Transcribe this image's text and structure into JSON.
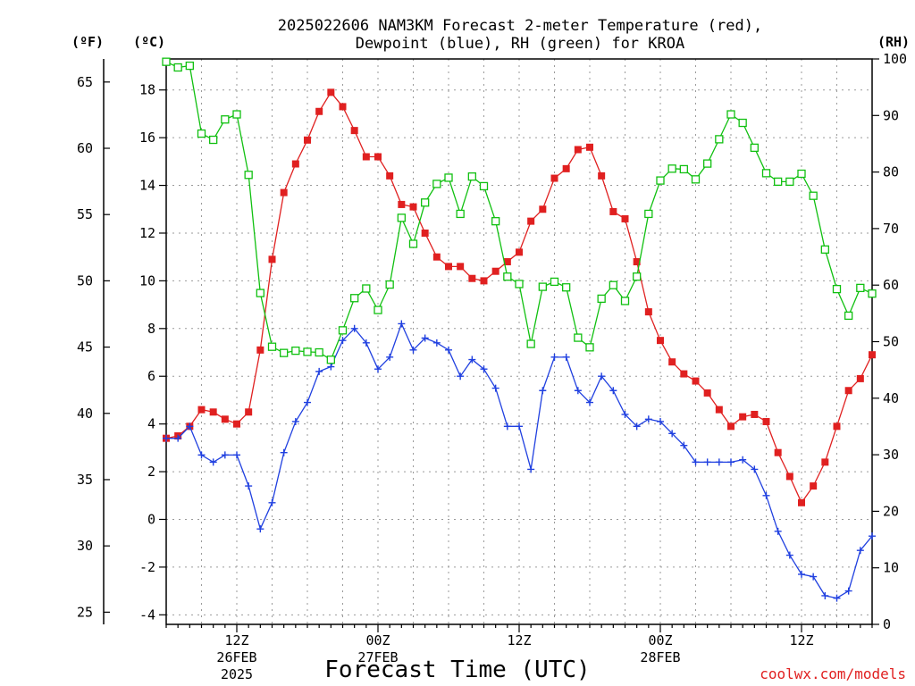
{
  "chart_data": {
    "type": "line",
    "title_line1": "2025022606 NAM3KM Forecast 2-meter Temperature (red),",
    "title_line2": "Dewpoint (blue), RH (green) for KROA",
    "xlabel": "Forecast Time (UTC)",
    "credit": "coolwx.com/models",
    "units": {
      "fahrenheit": "(ºF)",
      "celsius": "(ºC)",
      "rh": "(RH)"
    },
    "x_start_hour": 6,
    "x_end_hour": 66,
    "x_ticks": [
      {
        "hour": 12,
        "label1": "12Z",
        "label2": "26FEB",
        "label3": "2025"
      },
      {
        "hour": 24,
        "label1": "00Z",
        "label2": "27FEB",
        "label3": ""
      },
      {
        "hour": 36,
        "label1": "12Z",
        "label2": "",
        "label3": ""
      },
      {
        "hour": 48,
        "label1": "00Z",
        "label2": "28FEB",
        "label3": ""
      },
      {
        "hour": 60,
        "label1": "12Z",
        "label2": "",
        "label3": ""
      }
    ],
    "celsius_range": [
      -4.4,
      19.3
    ],
    "celsius_ticks": [
      18,
      16,
      14,
      12,
      10,
      8,
      6,
      4,
      2,
      0,
      -2,
      -4
    ],
    "fahrenheit_ticks": [
      65,
      60,
      55,
      50,
      45,
      40,
      35,
      30,
      25
    ],
    "rh_range": [
      0,
      100
    ],
    "rh_ticks": [
      100,
      90,
      80,
      70,
      60,
      50,
      40,
      30,
      20,
      10,
      0
    ],
    "grid": true,
    "colors": {
      "temperature": "#e02020",
      "dewpoint": "#2040e0",
      "rh": "#10c010"
    },
    "series": [
      {
        "name": "2-meter Temperature (red)",
        "axis": "celsius",
        "marker": "filled-square",
        "x": [
          6,
          7,
          8,
          9,
          10,
          11,
          12,
          13,
          14,
          15,
          16,
          17,
          18,
          19,
          20,
          21,
          22,
          23,
          24,
          25,
          26,
          27,
          28,
          29,
          30,
          31,
          32,
          33,
          34,
          35,
          36,
          37,
          38,
          39,
          40,
          41,
          42,
          43,
          44,
          45,
          46,
          47,
          48,
          49,
          50,
          51,
          52,
          53,
          54,
          55,
          56,
          57,
          58,
          59,
          60,
          61,
          62,
          63,
          64,
          65,
          66
        ],
        "values": [
          3.4,
          3.5,
          3.9,
          4.6,
          4.5,
          4.2,
          4.0,
          4.5,
          7.1,
          10.9,
          13.7,
          14.9,
          15.9,
          17.1,
          17.9,
          17.3,
          16.3,
          15.2,
          15.2,
          14.4,
          13.2,
          13.1,
          12.0,
          11.0,
          10.6,
          10.6,
          10.1,
          10.0,
          10.4,
          10.8,
          11.2,
          12.5,
          13.0,
          14.3,
          14.7,
          15.5,
          15.6,
          14.4,
          12.9,
          12.6,
          10.8,
          8.7,
          7.5,
          6.6,
          6.1,
          5.8,
          5.3,
          4.6,
          3.9,
          4.3,
          4.4,
          4.1,
          2.8,
          1.8,
          0.7,
          1.4,
          2.4,
          3.9,
          5.4,
          5.9,
          6.9
        ]
      },
      {
        "name": "Dewpoint (blue)",
        "axis": "celsius",
        "marker": "plus",
        "x": [
          6,
          7,
          8,
          9,
          10,
          11,
          12,
          13,
          14,
          15,
          16,
          17,
          18,
          19,
          20,
          21,
          22,
          23,
          24,
          25,
          26,
          27,
          28,
          29,
          30,
          31,
          32,
          33,
          34,
          35,
          36,
          37,
          38,
          39,
          40,
          41,
          42,
          43,
          44,
          45,
          46,
          47,
          48,
          49,
          50,
          51,
          52,
          53,
          54,
          55,
          56,
          57,
          58,
          59,
          60,
          61,
          62,
          63,
          64,
          65,
          66
        ],
        "values": [
          3.4,
          3.4,
          3.9,
          2.7,
          2.4,
          2.7,
          2.7,
          1.4,
          -0.4,
          0.7,
          2.8,
          4.1,
          4.9,
          6.2,
          6.4,
          7.5,
          8.0,
          7.4,
          6.3,
          6.8,
          8.2,
          7.1,
          7.6,
          7.4,
          7.1,
          6.0,
          6.7,
          6.3,
          5.5,
          3.9,
          3.9,
          2.1,
          5.4,
          6.8,
          6.8,
          5.4,
          4.9,
          6.0,
          5.4,
          4.4,
          3.9,
          4.2,
          4.1,
          3.6,
          3.1,
          2.4,
          2.4,
          2.4,
          2.4,
          2.5,
          2.1,
          1.0,
          -0.5,
          -1.5,
          -2.3,
          -2.4,
          -3.2,
          -3.3,
          -3.0,
          -1.3,
          -0.7
        ]
      },
      {
        "name": "RH (green)",
        "axis": "rh",
        "marker": "open-square",
        "x": [
          6,
          7,
          8,
          9,
          10,
          11,
          12,
          13,
          14,
          15,
          16,
          17,
          18,
          19,
          20,
          21,
          22,
          23,
          24,
          25,
          26,
          27,
          28,
          29,
          30,
          31,
          32,
          33,
          34,
          35,
          36,
          37,
          38,
          39,
          40,
          41,
          42,
          43,
          44,
          45,
          46,
          47,
          48,
          49,
          50,
          51,
          52,
          53,
          54,
          55,
          56,
          57,
          58,
          59,
          60,
          61,
          62,
          63,
          64,
          65,
          66
        ],
        "values": [
          99.5,
          98.5,
          98.8,
          86.8,
          85.7,
          89.3,
          90.2,
          79.5,
          58.6,
          49.1,
          48.0,
          48.4,
          48.2,
          48.1,
          46.8,
          52.0,
          57.7,
          59.4,
          55.6,
          60.1,
          71.9,
          67.3,
          74.6,
          77.9,
          79.0,
          72.6,
          79.2,
          77.5,
          71.3,
          61.5,
          60.2,
          49.6,
          59.7,
          60.6,
          59.6,
          50.7,
          49.0,
          57.6,
          60.0,
          57.2,
          61.5,
          72.6,
          78.5,
          80.6,
          80.5,
          78.7,
          81.5,
          85.8,
          90.2,
          88.7,
          84.3,
          79.8,
          78.3,
          78.3,
          79.7,
          75.8,
          66.3,
          59.3,
          54.6,
          59.5,
          58.5
        ]
      }
    ]
  }
}
